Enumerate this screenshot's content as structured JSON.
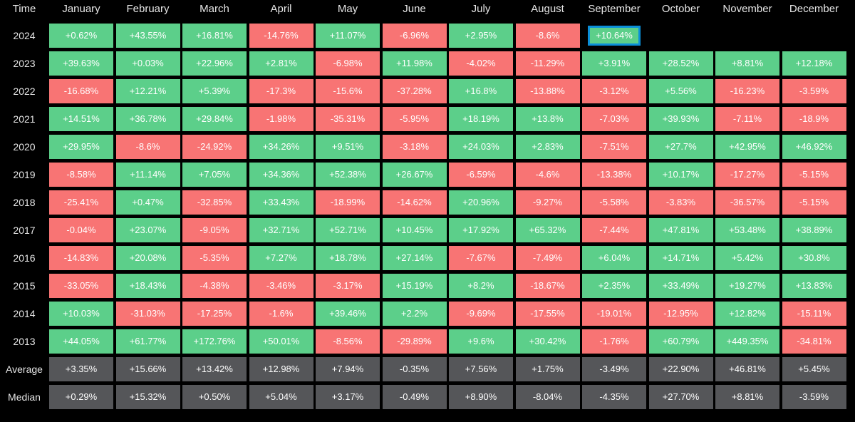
{
  "colors": {
    "background": "#000000",
    "positive": "#5ccf8a",
    "negative": "#f87474",
    "summary": "#555659",
    "highlight": "#0b8fd8",
    "text": "#ffffff"
  },
  "chart_data": {
    "type": "heatmap",
    "corner_label": "Time",
    "columns": [
      "January",
      "February",
      "March",
      "April",
      "May",
      "June",
      "July",
      "August",
      "September",
      "October",
      "November",
      "December"
    ],
    "rows": [
      {
        "label": "2024",
        "kind": "year",
        "values": [
          "+0.62%",
          "+43.55%",
          "+16.81%",
          "-14.76%",
          "+11.07%",
          "-6.96%",
          "+2.95%",
          "-8.6%",
          "+10.64%",
          "",
          "",
          ""
        ]
      },
      {
        "label": "2023",
        "kind": "year",
        "values": [
          "+39.63%",
          "+0.03%",
          "+22.96%",
          "+2.81%",
          "-6.98%",
          "+11.98%",
          "-4.02%",
          "-11.29%",
          "+3.91%",
          "+28.52%",
          "+8.81%",
          "+12.18%"
        ]
      },
      {
        "label": "2022",
        "kind": "year",
        "values": [
          "-16.68%",
          "+12.21%",
          "+5.39%",
          "-17.3%",
          "-15.6%",
          "-37.28%",
          "+16.8%",
          "-13.88%",
          "-3.12%",
          "+5.56%",
          "-16.23%",
          "-3.59%"
        ]
      },
      {
        "label": "2021",
        "kind": "year",
        "values": [
          "+14.51%",
          "+36.78%",
          "+29.84%",
          "-1.98%",
          "-35.31%",
          "-5.95%",
          "+18.19%",
          "+13.8%",
          "-7.03%",
          "+39.93%",
          "-7.11%",
          "-18.9%"
        ]
      },
      {
        "label": "2020",
        "kind": "year",
        "values": [
          "+29.95%",
          "-8.6%",
          "-24.92%",
          "+34.26%",
          "+9.51%",
          "-3.18%",
          "+24.03%",
          "+2.83%",
          "-7.51%",
          "+27.7%",
          "+42.95%",
          "+46.92%"
        ]
      },
      {
        "label": "2019",
        "kind": "year",
        "values": [
          "-8.58%",
          "+11.14%",
          "+7.05%",
          "+34.36%",
          "+52.38%",
          "+26.67%",
          "-6.59%",
          "-4.6%",
          "-13.38%",
          "+10.17%",
          "-17.27%",
          "-5.15%"
        ]
      },
      {
        "label": "2018",
        "kind": "year",
        "values": [
          "-25.41%",
          "+0.47%",
          "-32.85%",
          "+33.43%",
          "-18.99%",
          "-14.62%",
          "+20.96%",
          "-9.27%",
          "-5.58%",
          "-3.83%",
          "-36.57%",
          "-5.15%"
        ]
      },
      {
        "label": "2017",
        "kind": "year",
        "values": [
          "-0.04%",
          "+23.07%",
          "-9.05%",
          "+32.71%",
          "+52.71%",
          "+10.45%",
          "+17.92%",
          "+65.32%",
          "-7.44%",
          "+47.81%",
          "+53.48%",
          "+38.89%"
        ]
      },
      {
        "label": "2016",
        "kind": "year",
        "values": [
          "-14.83%",
          "+20.08%",
          "-5.35%",
          "+7.27%",
          "+18.78%",
          "+27.14%",
          "-7.67%",
          "-7.49%",
          "+6.04%",
          "+14.71%",
          "+5.42%",
          "+30.8%"
        ]
      },
      {
        "label": "2015",
        "kind": "year",
        "values": [
          "-33.05%",
          "+18.43%",
          "-4.38%",
          "-3.46%",
          "-3.17%",
          "+15.19%",
          "+8.2%",
          "-18.67%",
          "+2.35%",
          "+33.49%",
          "+19.27%",
          "+13.83%"
        ]
      },
      {
        "label": "2014",
        "kind": "year",
        "values": [
          "+10.03%",
          "-31.03%",
          "-17.25%",
          "-1.6%",
          "+39.46%",
          "+2.2%",
          "-9.69%",
          "-17.55%",
          "-19.01%",
          "-12.95%",
          "+12.82%",
          "-15.11%"
        ]
      },
      {
        "label": "2013",
        "kind": "year",
        "values": [
          "+44.05%",
          "+61.77%",
          "+172.76%",
          "+50.01%",
          "-8.56%",
          "-29.89%",
          "+9.6%",
          "+30.42%",
          "-1.76%",
          "+60.79%",
          "+449.35%",
          "-34.81%"
        ]
      },
      {
        "label": "Average",
        "kind": "summary",
        "values": [
          "+3.35%",
          "+15.66%",
          "+13.42%",
          "+12.98%",
          "+7.94%",
          "-0.35%",
          "+7.56%",
          "+1.75%",
          "-3.49%",
          "+22.90%",
          "+46.81%",
          "+5.45%"
        ]
      },
      {
        "label": "Median",
        "kind": "summary",
        "values": [
          "+0.29%",
          "+15.32%",
          "+0.50%",
          "+5.04%",
          "+3.17%",
          "-0.49%",
          "+8.90%",
          "-8.04%",
          "-4.35%",
          "+27.70%",
          "+8.81%",
          "-3.59%"
        ]
      }
    ],
    "highlighted_cell": {
      "row": "2024",
      "column": "September"
    }
  }
}
